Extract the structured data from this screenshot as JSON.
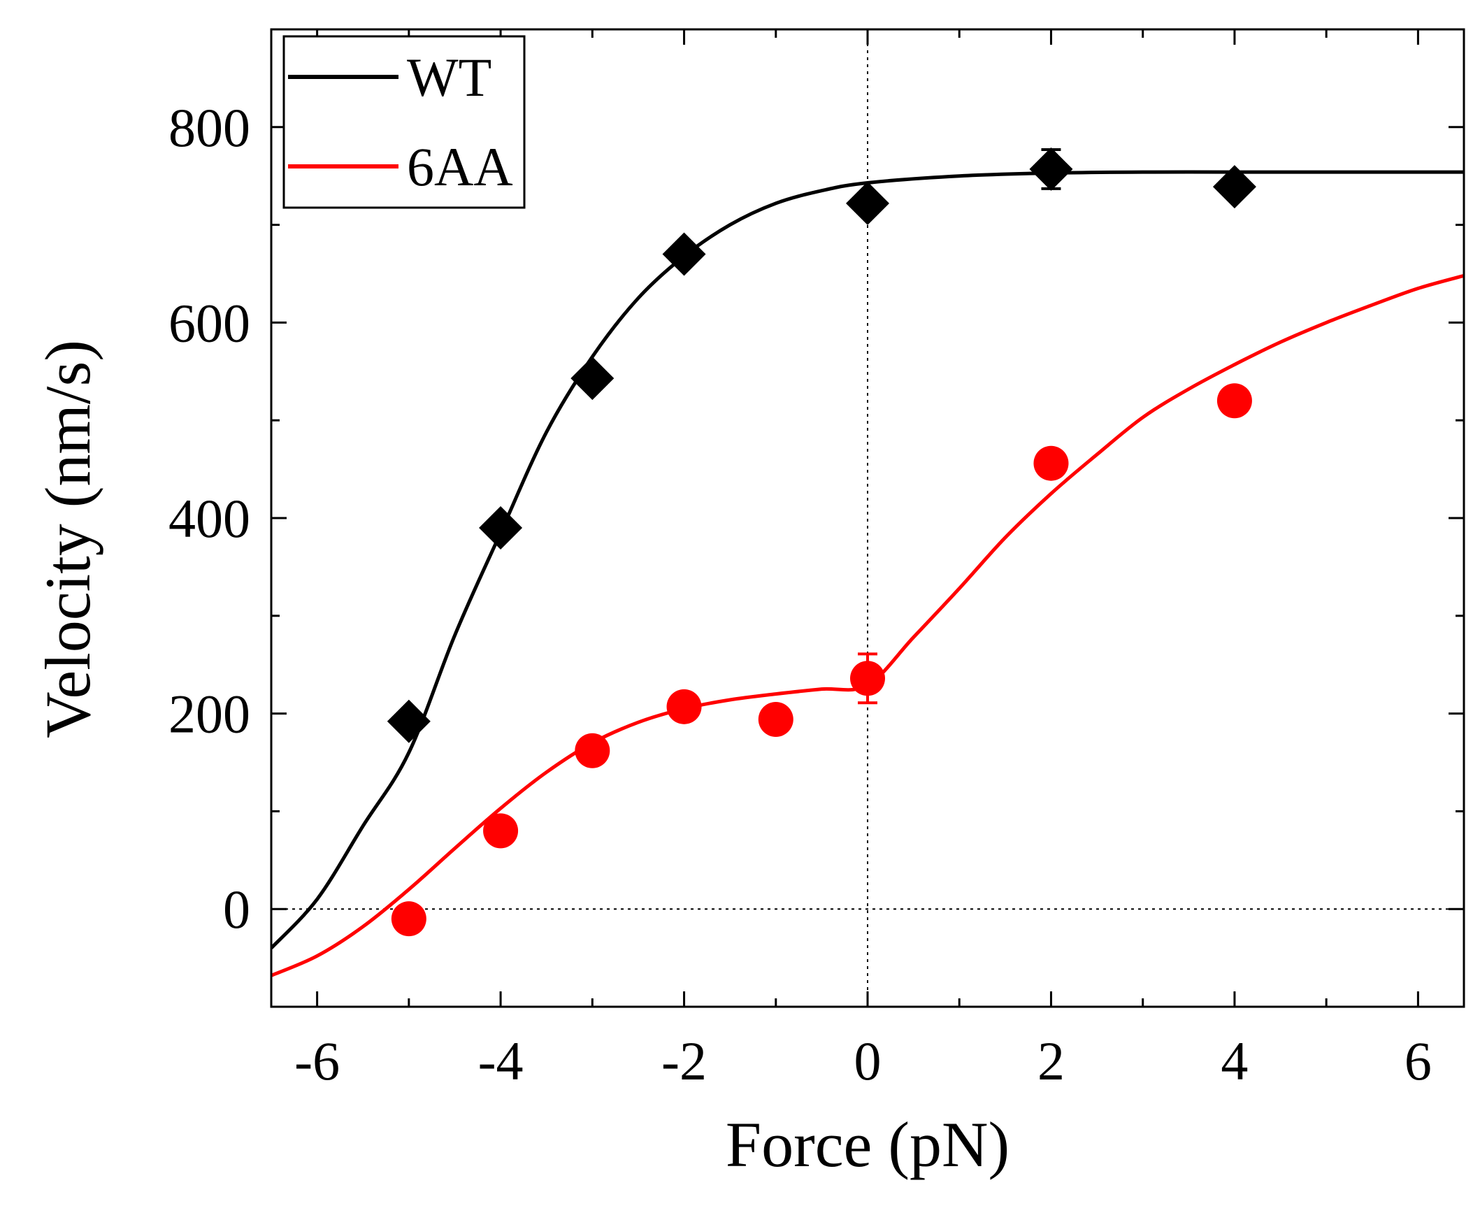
{
  "chart_data": {
    "type": "scatter",
    "xlabel": "Force (pN)",
    "ylabel": "Velocity (nm/s)",
    "xlim": [
      -6.5,
      6.5
    ],
    "ylim": [
      -100,
      900
    ],
    "x_ticks": [
      -6,
      -4,
      -2,
      0,
      2,
      4,
      6
    ],
    "x_tick_labels": [
      "-6",
      "-4",
      "-2",
      "0",
      "2",
      "4",
      "6"
    ],
    "y_ticks": [
      0,
      200,
      400,
      600,
      800
    ],
    "y_tick_labels": [
      "0",
      "200",
      "400",
      "600",
      "800"
    ],
    "reference_lines": {
      "x": 0,
      "y": 0,
      "style": "dotted"
    },
    "legend_position": "top-left",
    "series": [
      {
        "name": "WT",
        "color": "#000000",
        "marker": "diamond",
        "points": [
          {
            "x": -5,
            "y": 192
          },
          {
            "x": -4,
            "y": 390
          },
          {
            "x": -3,
            "y": 543
          },
          {
            "x": -2,
            "y": 670
          },
          {
            "x": 0,
            "y": 722
          },
          {
            "x": 2,
            "y": 757,
            "err": 20
          },
          {
            "x": 4,
            "y": 739
          }
        ],
        "fit": {
          "x": [
            -6.5,
            -6.0,
            -5.5,
            -5.0,
            -4.5,
            -4.0,
            -3.5,
            -3.0,
            -2.5,
            -2.0,
            -1.5,
            -1.0,
            -0.5,
            0.0,
            1.0,
            2.0,
            3.0,
            4.0,
            5.0,
            6.0,
            6.5
          ],
          "y": [
            -40,
            10,
            85,
            160,
            280,
            385,
            488,
            565,
            625,
            668,
            700,
            722,
            735,
            743,
            750,
            753,
            754,
            754,
            754,
            754,
            754
          ]
        }
      },
      {
        "name": "6AA",
        "color": "#ff0000",
        "marker": "circle",
        "points": [
          {
            "x": -5,
            "y": -10
          },
          {
            "x": -4,
            "y": 80
          },
          {
            "x": -3,
            "y": 162
          },
          {
            "x": -2,
            "y": 207
          },
          {
            "x": -1,
            "y": 194
          },
          {
            "x": 0,
            "y": 236,
            "err": 25
          },
          {
            "x": 2,
            "y": 456
          },
          {
            "x": 4,
            "y": 520
          }
        ],
        "fit": {
          "x": [
            -6.5,
            -6.0,
            -5.5,
            -5.0,
            -4.5,
            -4.0,
            -3.5,
            -3.0,
            -2.5,
            -2.0,
            -1.5,
            -1.0,
            -0.5,
            0.0,
            0.5,
            1.0,
            1.5,
            2.0,
            2.5,
            3.0,
            3.5,
            4.0,
            4.5,
            5.0,
            5.5,
            6.0,
            6.5
          ],
          "y": [
            -68,
            -48,
            -18,
            20,
            62,
            103,
            140,
            170,
            191,
            205,
            214,
            220,
            225,
            229,
            278,
            328,
            380,
            425,
            465,
            503,
            532,
            557,
            580,
            600,
            618,
            635,
            648
          ]
        }
      }
    ]
  }
}
